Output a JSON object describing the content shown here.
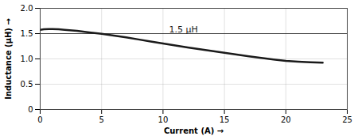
{
  "chart_data": {
    "type": "line",
    "xlabel": "Current (A)",
    "ylabel": "Inductance (μH)",
    "x": [
      0,
      0.3,
      0.7,
      1.0,
      1.5,
      2.0,
      3,
      4,
      5,
      6,
      7,
      8,
      9,
      10,
      11,
      12,
      13,
      14,
      15,
      16,
      17,
      18,
      19,
      20,
      21,
      22,
      23
    ],
    "values": [
      1.575,
      1.585,
      1.59,
      1.59,
      1.585,
      1.575,
      1.555,
      1.525,
      1.495,
      1.46,
      1.425,
      1.385,
      1.345,
      1.305,
      1.265,
      1.225,
      1.19,
      1.155,
      1.12,
      1.085,
      1.05,
      1.02,
      0.99,
      0.96,
      0.945,
      0.935,
      0.925
    ],
    "color": "#1a1a1a",
    "xlim": [
      0,
      25
    ],
    "ylim": [
      0,
      2.0
    ],
    "xticks": [
      0,
      5,
      10,
      15,
      20,
      25
    ],
    "yticks": [
      0,
      0.5,
      {
        "value": 1.0,
        "label": "1.0"
      },
      1.5,
      {
        "value": 2.0,
        "label": "2.0"
      }
    ],
    "grid": true,
    "reference_lines": [
      {
        "y": 1.5
      }
    ],
    "annotations": [
      {
        "text": "1.5 μH",
        "x": 10.5,
        "y": 1.52
      }
    ]
  }
}
